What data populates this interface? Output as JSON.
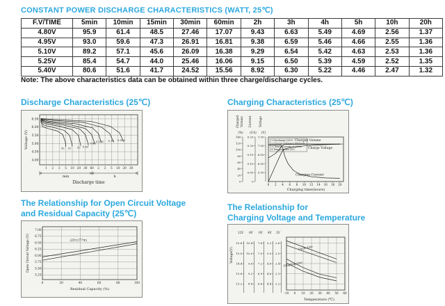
{
  "page": {
    "title": "CONSTANT POWER DISCHARGE CHARACTERISTICS (WATT, 25℃)",
    "note": "Note: The above characteristics data can be obtained within three charge/discharge cycles.",
    "accent_color": "#2ba8de"
  },
  "table": {
    "headers": [
      "F.V/TIME",
      "5min",
      "10min",
      "15min",
      "30min",
      "60min",
      "2h",
      "3h",
      "4h",
      "5h",
      "10h",
      "20h"
    ],
    "rows": [
      [
        "4.80V",
        "95.9",
        "61.4",
        "48.5",
        "27.46",
        "17.07",
        "9.43",
        "6.63",
        "5.49",
        "4.69",
        "2.56",
        "1.37"
      ],
      [
        "4.95V",
        "93.0",
        "59.6",
        "47.3",
        "26.91",
        "16.81",
        "9.38",
        "6.59",
        "5.46",
        "4.66",
        "2.55",
        "1.36"
      ],
      [
        "5.10V",
        "89.2",
        "57.1",
        "45.6",
        "26.09",
        "16.38",
        "9.29",
        "6.54",
        "5.42",
        "4.63",
        "2.53",
        "1.36"
      ],
      [
        "5.25V",
        "85.4",
        "54.7",
        "44.0",
        "25.46",
        "16.06",
        "9.15",
        "6.50",
        "5.39",
        "4.59",
        "2.52",
        "1.35"
      ],
      [
        "5.40V",
        "80.6",
        "51.6",
        "41.7",
        "24.52",
        "15.56",
        "8.92",
        "6.30",
        "5.22",
        "4.46",
        "2.47",
        "1.32"
      ]
    ]
  },
  "chart_data": [
    {
      "id": "discharge",
      "type": "line",
      "title_lines": [
        "Discharge Characteristics (25℃)"
      ],
      "ylabel": "Voltage (V)",
      "yticks": [
        "6.50",
        "6.00",
        "5.50",
        "5.00",
        "4.50",
        "4.00"
      ],
      "ylim": [
        3.7,
        6.75
      ],
      "xlabel": "Discharge time",
      "x_group_labels": [
        "min",
        "h"
      ],
      "xtick_labels": [
        "1",
        "2",
        "3",
        "5",
        "10",
        "20",
        "30",
        "60",
        "2",
        "3",
        "5",
        "10",
        "20",
        "30"
      ],
      "series": [
        {
          "name": "3C",
          "label_x": 0.235,
          "label_y": 4.66,
          "points": [
            [
              0.012,
              6.38
            ],
            [
              0.03,
              6.02
            ],
            [
              0.09,
              5.9
            ],
            [
              0.18,
              5.76
            ],
            [
              0.235,
              5.55
            ],
            [
              0.262,
              5.1
            ],
            [
              0.268,
              4.8
            ]
          ]
        },
        {
          "name": "2C",
          "label_x": 0.305,
          "label_y": 4.66,
          "points": [
            [
              0.012,
              6.41
            ],
            [
              0.04,
              6.12
            ],
            [
              0.14,
              5.98
            ],
            [
              0.25,
              5.8
            ],
            [
              0.305,
              5.5
            ],
            [
              0.328,
              5.0
            ],
            [
              0.332,
              4.82
            ]
          ]
        },
        {
          "name": "1C",
          "label_x": 0.4,
          "label_y": 4.7,
          "points": [
            [
              0.012,
              6.44
            ],
            [
              0.05,
              6.22
            ],
            [
              0.2,
              6.05
            ],
            [
              0.33,
              5.85
            ],
            [
              0.395,
              5.5
            ],
            [
              0.415,
              5.0
            ],
            [
              0.42,
              4.85
            ]
          ]
        },
        {
          "name": "0.6C",
          "label_x": 0.47,
          "label_y": 4.74,
          "points": [
            [
              0.012,
              6.46
            ],
            [
              0.06,
              6.28
            ],
            [
              0.26,
              6.1
            ],
            [
              0.41,
              5.88
            ],
            [
              0.465,
              5.55
            ],
            [
              0.492,
              5.05
            ],
            [
              0.497,
              4.88
            ]
          ]
        },
        {
          "name": "0.4C",
          "label_x": 0.545,
          "label_y": 4.96,
          "points": [
            [
              0.012,
              6.47
            ],
            [
              0.07,
              6.32
            ],
            [
              0.31,
              6.15
            ],
            [
              0.47,
              5.9
            ],
            [
              0.53,
              5.55
            ],
            [
              0.558,
              5.08
            ],
            [
              0.562,
              4.98
            ]
          ]
        },
        {
          "name": "0.25C",
          "label_x": 0.615,
          "label_y": 5.06,
          "points": [
            [
              0.012,
              6.49
            ],
            [
              0.09,
              6.36
            ],
            [
              0.37,
              6.2
            ],
            [
              0.54,
              5.95
            ],
            [
              0.6,
              5.6
            ],
            [
              0.625,
              5.12
            ],
            [
              0.63,
              5.05
            ]
          ]
        },
        {
          "name": "0.1C",
          "label_x": 0.73,
          "label_y": 5.1,
          "points": [
            [
              0.012,
              6.51
            ],
            [
              0.11,
              6.42
            ],
            [
              0.45,
              6.28
            ],
            [
              0.63,
              6.0
            ],
            [
              0.715,
              5.6
            ],
            [
              0.75,
              5.15
            ],
            [
              0.755,
              5.08
            ]
          ]
        },
        {
          "name": "0.05C",
          "label_x": 0.835,
          "label_y": 5.13,
          "points": [
            [
              0.012,
              6.52
            ],
            [
              0.14,
              6.46
            ],
            [
              0.52,
              6.35
            ],
            [
              0.72,
              6.05
            ],
            [
              0.815,
              5.65
            ],
            [
              0.85,
              5.2
            ],
            [
              0.855,
              5.1
            ]
          ]
        }
      ]
    },
    {
      "id": "charging",
      "type": "line",
      "title_lines": [
        "Charging Characteristics (25℃)"
      ],
      "axis_volume": {
        "name": "Charged Volume",
        "unit": "(%)",
        "ticks": [
          "0",
          "20",
          "40",
          "60",
          "80",
          "100",
          "120",
          "140"
        ]
      },
      "axis_current": {
        "name": "Current",
        "unit": "(CA)",
        "ticks": [
          "0",
          "0.05",
          "0.10",
          "0.15",
          "0.20",
          "0.25"
        ]
      },
      "axis_voltage": {
        "name": "Voltage",
        "unit": "(V)",
        "ticks": [
          "5.50",
          "6.00",
          "6.50",
          "7.00",
          "7.50"
        ]
      },
      "xticks": [
        "0",
        "2",
        "4",
        "6",
        "8",
        "10",
        "12",
        "14",
        "16",
        "18",
        "20"
      ],
      "xlabel": "Charging time(hours)",
      "legend_lines": [
        "1.Discharge:100%",
        "2.Charge voltage:2.45V/cell",
        "3.Charge current:0.25CA",
        "4.Temperature:25℃"
      ],
      "volume_points": [
        [
          0,
          0
        ],
        [
          1,
          25
        ],
        [
          2,
          50
        ],
        [
          3,
          75
        ],
        [
          4,
          98
        ],
        [
          5,
          104
        ],
        [
          7,
          108
        ],
        [
          10,
          112
        ],
        [
          14,
          115
        ],
        [
          20,
          118
        ]
      ],
      "current_points": [
        [
          0,
          0.205
        ],
        [
          3.6,
          0.205
        ],
        [
          4.0,
          0.19
        ],
        [
          4.6,
          0.14
        ],
        [
          5.5,
          0.1
        ],
        [
          7,
          0.062
        ],
        [
          9,
          0.04
        ],
        [
          12,
          0.027
        ],
        [
          16,
          0.02
        ],
        [
          20,
          0.018
        ]
      ],
      "voltage_points": [
        [
          0,
          6.33
        ],
        [
          1,
          6.45
        ],
        [
          2,
          6.58
        ],
        [
          3,
          6.78
        ],
        [
          3.8,
          7.0
        ],
        [
          4.5,
          7.08
        ],
        [
          5.5,
          7.1
        ],
        [
          20,
          7.1
        ]
      ],
      "plateau_voltage": 7.1,
      "curve_labels": {
        "volume": "Charged Volume",
        "voltage": "Charge Voltage",
        "current": "Charging Current"
      }
    },
    {
      "id": "ocv",
      "type": "line",
      "title_lines": [
        "The Relationship for Open Circuit Voltage",
        "and Residual Capacity (25℃)"
      ],
      "ylabel": "Open Circuit Voltage (V)",
      "yticks": [
        "7.00",
        "6.75",
        "6.50",
        "6.25",
        "6.00",
        "5.75",
        "5.50",
        "5.25"
      ],
      "ylim": [
        5.07,
        7.12
      ],
      "xticks": [
        "0",
        "20",
        "40",
        "60",
        "80",
        "100"
      ],
      "xlabel": "Residual Capacity (%)",
      "annotation": "(25℃/77℉)",
      "lines": [
        [
          [
            0,
            5.95
          ],
          [
            100,
            6.54
          ]
        ],
        [
          [
            0,
            5.82
          ],
          [
            100,
            6.46
          ]
        ]
      ]
    },
    {
      "id": "temp",
      "type": "line",
      "title_lines": [
        "The Relationship for",
        "Charging Voltage and Temperature"
      ],
      "ylabel": "Voltage(V)",
      "scales": [
        {
          "name": "12V",
          "ticks": [
            "15.6",
            "15.0",
            "14.4",
            "13.8",
            "13.2"
          ]
        },
        {
          "name": "8V",
          "ticks": [
            "10.4",
            "10.0",
            "9.6",
            "9.2",
            "8.8"
          ]
        },
        {
          "name": "6V",
          "ticks": [
            "7.8",
            "7.5",
            "7.2",
            "6.9",
            "6.6"
          ]
        },
        {
          "name": "4V",
          "ticks": [
            "5.2",
            "5.0",
            "4.8",
            "4.6",
            "4.4"
          ]
        },
        {
          "name": "2V",
          "ticks": [
            "2.6",
            "2.5",
            "2.4",
            "2.3",
            "2.2"
          ]
        }
      ],
      "xticks": [
        "-10",
        "0",
        "10",
        "20",
        "30",
        "40",
        "50",
        "60"
      ],
      "xlabel": "Temperature (℃)",
      "bands": [
        {
          "name": "Cycle Use",
          "label_t": 13,
          "label_v": 2.545,
          "rot": -12,
          "upper": [
            [
              -10,
              2.625
            ],
            [
              50,
              2.445
            ]
          ],
          "lower": [
            [
              -10,
              2.58
            ],
            [
              50,
              2.41
            ]
          ]
        },
        {
          "name": "Floating Use",
          "label_t": -2,
          "label_v": 2.385,
          "rot": -12,
          "upper": [
            [
              -10,
              2.445
            ],
            [
              10,
              2.36
            ],
            [
              30,
              2.295
            ],
            [
              50,
              2.26
            ]
          ],
          "lower": [
            [
              -10,
              2.405
            ],
            [
              10,
              2.325
            ],
            [
              30,
              2.265
            ],
            [
              50,
              2.23
            ]
          ]
        }
      ]
    }
  ]
}
